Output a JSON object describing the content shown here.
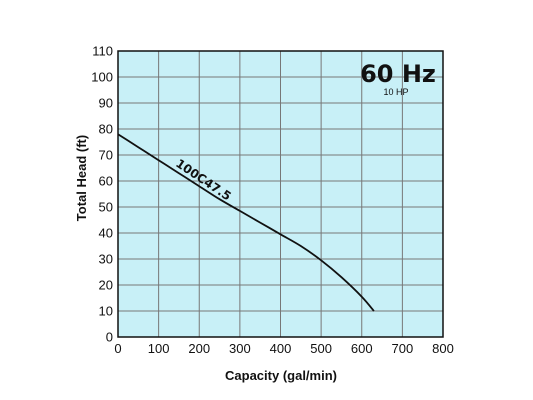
{
  "chart_data": {
    "type": "line",
    "title": "",
    "xlabel": "Capacity (gal/min)",
    "ylabel": "Total Head (ft)",
    "xlim": [
      0,
      800
    ],
    "ylim": [
      0,
      110
    ],
    "xticks": [
      0,
      100,
      200,
      300,
      400,
      500,
      600,
      700,
      800
    ],
    "yticks": [
      0,
      10,
      20,
      30,
      40,
      50,
      60,
      70,
      80,
      90,
      100,
      110
    ],
    "grid": true,
    "background_color": "#c8f0f7",
    "grid_color": "#777777",
    "line_color": "#111111",
    "series": [
      {
        "name": "100C47.5",
        "x": [
          0,
          50,
          100,
          150,
          200,
          250,
          300,
          350,
          400,
          450,
          500,
          550,
          600,
          630
        ],
        "y": [
          78,
          73,
          68,
          63,
          58,
          53,
          48.5,
          44,
          39.5,
          35,
          29.5,
          23,
          15.5,
          10
        ]
      }
    ],
    "annotations": {
      "frequency": "60 Hz",
      "power": "10 HP"
    }
  }
}
